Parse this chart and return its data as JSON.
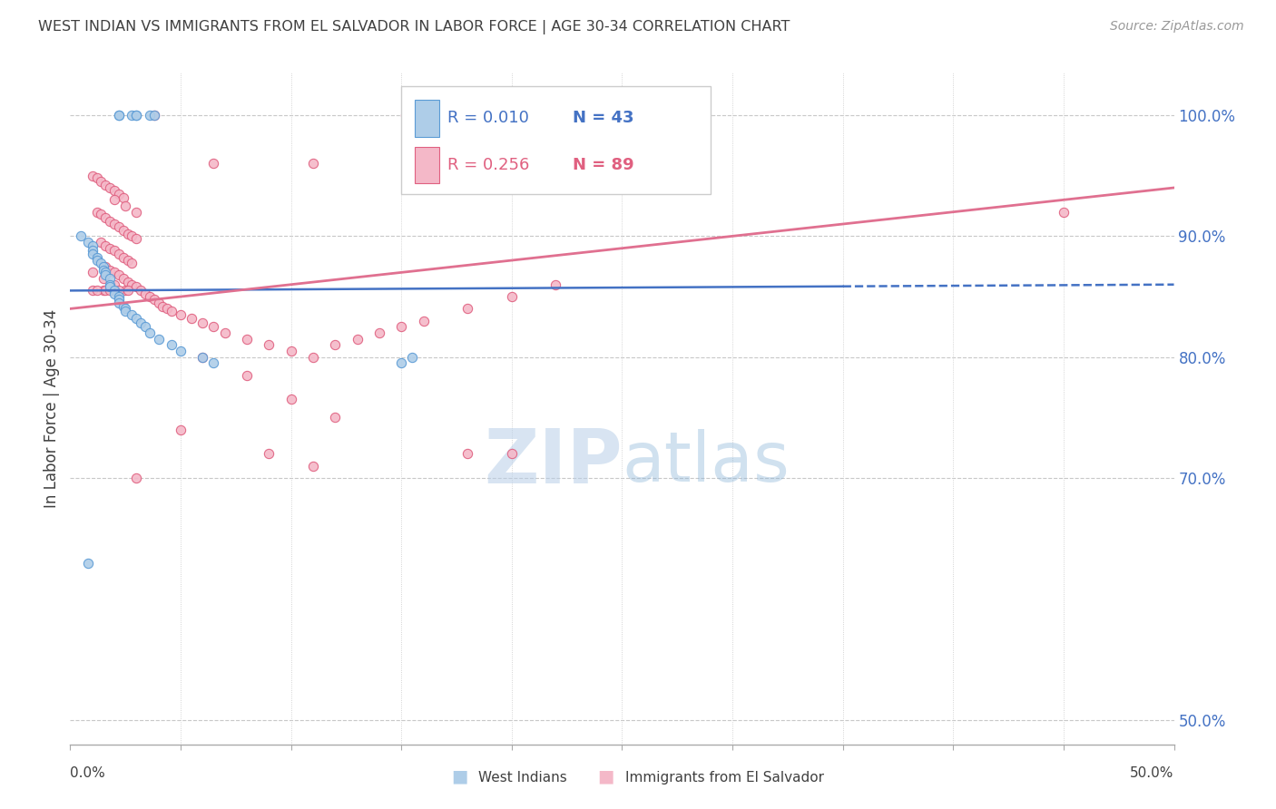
{
  "title": "WEST INDIAN VS IMMIGRANTS FROM EL SALVADOR IN LABOR FORCE | AGE 30-34 CORRELATION CHART",
  "source": "Source: ZipAtlas.com",
  "ylabel": "In Labor Force | Age 30-34",
  "ytick_labels": [
    "100.0%",
    "90.0%",
    "80.0%",
    "70.0%",
    "50.0%"
  ],
  "ytick_values": [
    1.0,
    0.9,
    0.8,
    0.7,
    0.5
  ],
  "xlim": [
    0.0,
    0.5
  ],
  "ylim": [
    0.48,
    1.035
  ],
  "legend_r1": "R = 0.010",
  "legend_n1": "N = 43",
  "legend_r2": "R = 0.256",
  "legend_n2": "N = 89",
  "color_blue_fill": "#aecde8",
  "color_blue_edge": "#5b9bd5",
  "color_pink_fill": "#f4b8c8",
  "color_pink_edge": "#e06080",
  "color_blue_line": "#4472C4",
  "color_pink_line": "#e07090",
  "color_axis_label": "#4472C4",
  "color_grid": "#c8c8c8",
  "color_title": "#404040",
  "watermark_color": "#ccddf0",
  "west_indian_x": [
    0.022,
    0.022,
    0.028,
    0.03,
    0.03,
    0.036,
    0.038,
    0.005,
    0.008,
    0.01,
    0.01,
    0.01,
    0.012,
    0.012,
    0.014,
    0.015,
    0.015,
    0.016,
    0.016,
    0.018,
    0.018,
    0.018,
    0.02,
    0.02,
    0.022,
    0.022,
    0.022,
    0.024,
    0.025,
    0.025,
    0.028,
    0.03,
    0.032,
    0.034,
    0.036,
    0.04,
    0.046,
    0.05,
    0.06,
    0.065,
    0.15,
    0.155,
    0.008
  ],
  "west_indian_y": [
    1.0,
    1.0,
    1.0,
    1.0,
    1.0,
    1.0,
    1.0,
    0.9,
    0.895,
    0.892,
    0.888,
    0.885,
    0.882,
    0.88,
    0.878,
    0.875,
    0.872,
    0.87,
    0.868,
    0.865,
    0.86,
    0.858,
    0.855,
    0.852,
    0.85,
    0.848,
    0.845,
    0.842,
    0.84,
    0.838,
    0.835,
    0.832,
    0.828,
    0.825,
    0.82,
    0.815,
    0.81,
    0.805,
    0.8,
    0.795,
    0.795,
    0.8,
    0.63
  ],
  "el_salvador_x": [
    0.038,
    0.065,
    0.11,
    0.152,
    0.01,
    0.012,
    0.014,
    0.016,
    0.018,
    0.02,
    0.022,
    0.024,
    0.012,
    0.014,
    0.016,
    0.018,
    0.02,
    0.022,
    0.024,
    0.026,
    0.028,
    0.03,
    0.014,
    0.016,
    0.018,
    0.02,
    0.022,
    0.024,
    0.026,
    0.028,
    0.016,
    0.018,
    0.02,
    0.022,
    0.024,
    0.026,
    0.028,
    0.03,
    0.032,
    0.034,
    0.036,
    0.038,
    0.04,
    0.042,
    0.044,
    0.046,
    0.05,
    0.055,
    0.06,
    0.065,
    0.07,
    0.08,
    0.09,
    0.1,
    0.11,
    0.12,
    0.13,
    0.14,
    0.15,
    0.16,
    0.18,
    0.2,
    0.22,
    0.01,
    0.015,
    0.02,
    0.025,
    0.01,
    0.015,
    0.06,
    0.08,
    0.1,
    0.12,
    0.18,
    0.2,
    0.45,
    0.02,
    0.025,
    0.03,
    0.03,
    0.05,
    0.09,
    0.11,
    0.012,
    0.016,
    0.018,
    0.022,
    0.026
  ],
  "el_salvador_y": [
    1.0,
    0.96,
    0.96,
    1.0,
    0.95,
    0.948,
    0.945,
    0.942,
    0.94,
    0.938,
    0.935,
    0.932,
    0.92,
    0.918,
    0.915,
    0.912,
    0.91,
    0.908,
    0.905,
    0.902,
    0.9,
    0.898,
    0.895,
    0.892,
    0.89,
    0.888,
    0.885,
    0.882,
    0.88,
    0.878,
    0.875,
    0.872,
    0.87,
    0.868,
    0.865,
    0.862,
    0.86,
    0.858,
    0.855,
    0.852,
    0.85,
    0.848,
    0.845,
    0.842,
    0.84,
    0.838,
    0.835,
    0.832,
    0.828,
    0.825,
    0.82,
    0.815,
    0.81,
    0.805,
    0.8,
    0.81,
    0.815,
    0.82,
    0.825,
    0.83,
    0.84,
    0.85,
    0.86,
    0.87,
    0.865,
    0.86,
    0.855,
    0.855,
    0.855,
    0.8,
    0.785,
    0.765,
    0.75,
    0.72,
    0.72,
    0.92,
    0.93,
    0.925,
    0.92,
    0.7,
    0.74,
    0.72,
    0.71,
    0.855,
    0.855,
    0.855,
    0.855,
    0.855
  ],
  "blue_trend_x": [
    0.0,
    0.5
  ],
  "blue_trend_y": [
    0.855,
    0.86
  ],
  "pink_trend_x": [
    0.0,
    0.5
  ],
  "pink_trend_y": [
    0.84,
    0.94
  ]
}
